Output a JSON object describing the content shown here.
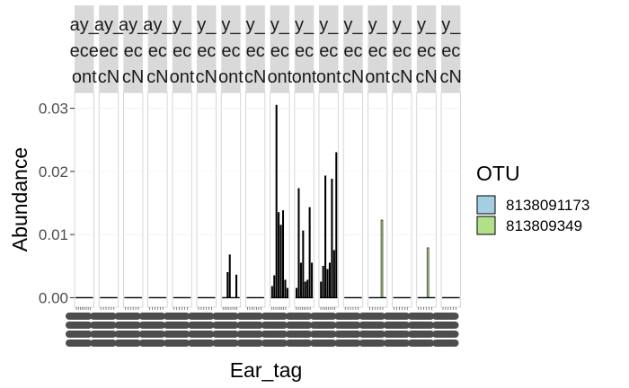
{
  "chart_data": {
    "type": "bar",
    "ylabel": "Abundance",
    "xlabel": "Ear_tag",
    "ylim": [
      -0.0015,
      0.0325
    ],
    "y_ticks": [
      0.0,
      0.01,
      0.02,
      0.03
    ],
    "y_tick_labels": [
      "0.00",
      "0.01",
      "0.02",
      "0.03"
    ],
    "facet_strip_lines": [
      [
        "ay_",
        "ece",
        "ont"
      ],
      [
        "ay_",
        "ec",
        "cN"
      ],
      [
        "ay_",
        "ec",
        "cN"
      ],
      [
        "ay_",
        "ec",
        "cN"
      ],
      [
        "y_",
        "ec",
        "ont"
      ],
      [
        "y_",
        "ec",
        "cN"
      ],
      [
        "y_",
        "ec",
        "ont"
      ],
      [
        "y_",
        "ec",
        "cN"
      ],
      [
        "y_",
        "ec",
        "ont"
      ],
      [
        "y_",
        "ec",
        "ont"
      ],
      [
        "y_",
        "ec",
        "ont"
      ],
      [
        "y_",
        "ec",
        "cN"
      ],
      [
        "y_",
        "ec",
        "ont"
      ],
      [
        "y_",
        "ec",
        "cN"
      ],
      [
        "y_",
        "ec",
        "cN"
      ],
      [
        "y_",
        "ec",
        "cN"
      ]
    ],
    "legend": {
      "title": "OTU",
      "entries": [
        {
          "label": "8138091173",
          "color": "#a6cee3"
        },
        {
          "label": "813809349",
          "color": "#b2df8a"
        }
      ]
    },
    "series": [
      {
        "name": "8138091173",
        "color": "#a6cee3",
        "facets": [
          [],
          [],
          [],
          [],
          [],
          [],
          [],
          [],
          [],
          [],
          [],
          [],
          [],
          [],
          [],
          []
        ]
      },
      {
        "name": "813809349",
        "color": "#b2df8a",
        "facets": [
          [],
          [],
          [],
          [],
          [],
          [],
          [],
          [],
          [],
          [],
          [],
          [],
          [],
          [],
          [],
          []
        ]
      }
    ],
    "facet_bar_values": [
      [
        0,
        0,
        0,
        0,
        0,
        0,
        0,
        0
      ],
      [
        0,
        0,
        0,
        0,
        0,
        0
      ],
      [
        0,
        0,
        0,
        0,
        0,
        0
      ],
      [
        0,
        0,
        0,
        0,
        0,
        0
      ],
      [
        0,
        0,
        0,
        0,
        0,
        0
      ],
      [
        0,
        0,
        0,
        0,
        0,
        0
      ],
      [
        0,
        0,
        0.004,
        0.0068,
        0,
        0,
        0.0036,
        0
      ],
      [
        0,
        0,
        0,
        0,
        0,
        0,
        0
      ],
      [
        0.0018,
        0.0035,
        0.0305,
        0.0135,
        0.0115,
        0.0138,
        0.0028,
        0.0015
      ],
      [
        0.0015,
        0.0173,
        0.0055,
        0.0106,
        0.0025,
        0.0028,
        0.0143,
        0.0055
      ],
      [
        0.0025,
        0.005,
        0.0193,
        0.0045,
        0.0055,
        0.0188,
        0.0075,
        0.023
      ],
      [
        0,
        0,
        0,
        0,
        0,
        0
      ],
      [
        0,
        0,
        0,
        0,
        0.0123,
        0
      ],
      [
        0,
        0,
        0,
        0,
        0,
        0
      ],
      [
        0,
        0,
        0,
        0.0079,
        0,
        0
      ],
      [
        0,
        0,
        0,
        0,
        0,
        0
      ]
    ],
    "facet_bar_fill": [
      "black",
      "black",
      "black",
      "black",
      "black",
      "black",
      "black",
      "black",
      "black",
      "black",
      "black",
      "black",
      "green",
      "black",
      "green",
      "black"
    ],
    "grid": true,
    "legend_position": "right"
  }
}
